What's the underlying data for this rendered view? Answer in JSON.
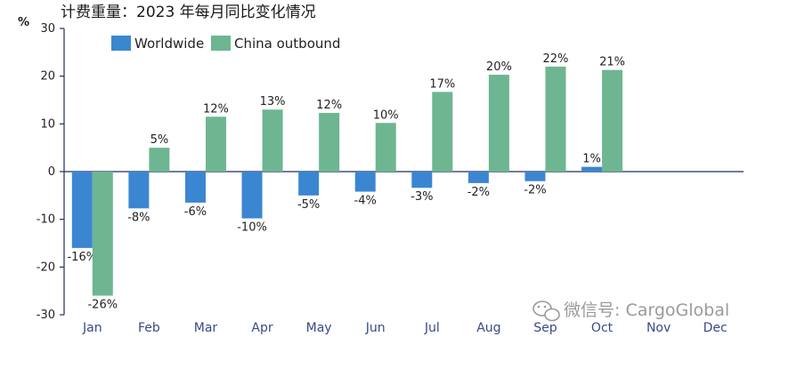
{
  "colors": {
    "worldwide": "#3b86d1",
    "china": "#6db691",
    "axis": "#1f2e5a"
  },
  "watermark": {
    "icon": "wechat-icon",
    "text": "微信号: CargoGlobal"
  },
  "chart_data": {
    "type": "bar",
    "title": "计费重量：2023 年每月同比变化情况",
    "ylabel": "%",
    "ylim": [
      -30,
      30
    ],
    "yticks": [
      -30,
      -20,
      -10,
      0,
      10,
      20,
      30
    ],
    "grid": false,
    "legend": "top-left",
    "categories": [
      "Jan",
      "Feb",
      "Mar",
      "Apr",
      "May",
      "Jun",
      "Jul",
      "Aug",
      "Sep",
      "Oct",
      "Nov",
      "Dec"
    ],
    "series": [
      {
        "name": "Worldwide",
        "values": [
          -16,
          -7.7,
          -6.5,
          -9.8,
          -5,
          -4.2,
          -3.4,
          -2.4,
          -2,
          1,
          null,
          null
        ],
        "labels": [
          "-16%",
          "-8%",
          "-6%",
          "-10%",
          "-5%",
          "-4%",
          "-3%",
          "-2%",
          "-2%",
          "1%",
          "",
          ""
        ]
      },
      {
        "name": "China outbound",
        "values": [
          -26,
          5,
          11.5,
          13,
          12.3,
          10.2,
          16.7,
          20.3,
          22,
          21.3,
          null,
          null
        ],
        "labels": [
          "-26%",
          "5%",
          "12%",
          "13%",
          "12%",
          "10%",
          "17%",
          "20%",
          "22%",
          "21%",
          "",
          ""
        ]
      }
    ]
  }
}
